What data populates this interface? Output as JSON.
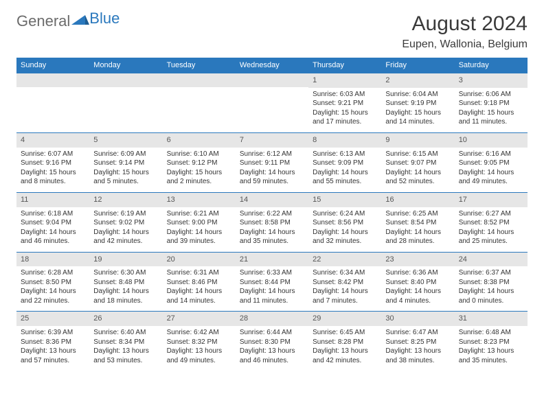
{
  "brand": {
    "part1": "General",
    "part2": "Blue"
  },
  "title": "August 2024",
  "location": "Eupen, Wallonia, Belgium",
  "colors": {
    "header_bg": "#2a78bd",
    "header_text": "#ffffff",
    "daynum_bg": "#e6e6e6",
    "border": "#2a78bd",
    "text": "#333333"
  },
  "day_headers": [
    "Sunday",
    "Monday",
    "Tuesday",
    "Wednesday",
    "Thursday",
    "Friday",
    "Saturday"
  ],
  "weeks": [
    [
      null,
      null,
      null,
      null,
      {
        "n": "1",
        "sr": "Sunrise: 6:03 AM",
        "ss": "Sunset: 9:21 PM",
        "dl": "Daylight: 15 hours and 17 minutes."
      },
      {
        "n": "2",
        "sr": "Sunrise: 6:04 AM",
        "ss": "Sunset: 9:19 PM",
        "dl": "Daylight: 15 hours and 14 minutes."
      },
      {
        "n": "3",
        "sr": "Sunrise: 6:06 AM",
        "ss": "Sunset: 9:18 PM",
        "dl": "Daylight: 15 hours and 11 minutes."
      }
    ],
    [
      {
        "n": "4",
        "sr": "Sunrise: 6:07 AM",
        "ss": "Sunset: 9:16 PM",
        "dl": "Daylight: 15 hours and 8 minutes."
      },
      {
        "n": "5",
        "sr": "Sunrise: 6:09 AM",
        "ss": "Sunset: 9:14 PM",
        "dl": "Daylight: 15 hours and 5 minutes."
      },
      {
        "n": "6",
        "sr": "Sunrise: 6:10 AM",
        "ss": "Sunset: 9:12 PM",
        "dl": "Daylight: 15 hours and 2 minutes."
      },
      {
        "n": "7",
        "sr": "Sunrise: 6:12 AM",
        "ss": "Sunset: 9:11 PM",
        "dl": "Daylight: 14 hours and 59 minutes."
      },
      {
        "n": "8",
        "sr": "Sunrise: 6:13 AM",
        "ss": "Sunset: 9:09 PM",
        "dl": "Daylight: 14 hours and 55 minutes."
      },
      {
        "n": "9",
        "sr": "Sunrise: 6:15 AM",
        "ss": "Sunset: 9:07 PM",
        "dl": "Daylight: 14 hours and 52 minutes."
      },
      {
        "n": "10",
        "sr": "Sunrise: 6:16 AM",
        "ss": "Sunset: 9:05 PM",
        "dl": "Daylight: 14 hours and 49 minutes."
      }
    ],
    [
      {
        "n": "11",
        "sr": "Sunrise: 6:18 AM",
        "ss": "Sunset: 9:04 PM",
        "dl": "Daylight: 14 hours and 46 minutes."
      },
      {
        "n": "12",
        "sr": "Sunrise: 6:19 AM",
        "ss": "Sunset: 9:02 PM",
        "dl": "Daylight: 14 hours and 42 minutes."
      },
      {
        "n": "13",
        "sr": "Sunrise: 6:21 AM",
        "ss": "Sunset: 9:00 PM",
        "dl": "Daylight: 14 hours and 39 minutes."
      },
      {
        "n": "14",
        "sr": "Sunrise: 6:22 AM",
        "ss": "Sunset: 8:58 PM",
        "dl": "Daylight: 14 hours and 35 minutes."
      },
      {
        "n": "15",
        "sr": "Sunrise: 6:24 AM",
        "ss": "Sunset: 8:56 PM",
        "dl": "Daylight: 14 hours and 32 minutes."
      },
      {
        "n": "16",
        "sr": "Sunrise: 6:25 AM",
        "ss": "Sunset: 8:54 PM",
        "dl": "Daylight: 14 hours and 28 minutes."
      },
      {
        "n": "17",
        "sr": "Sunrise: 6:27 AM",
        "ss": "Sunset: 8:52 PM",
        "dl": "Daylight: 14 hours and 25 minutes."
      }
    ],
    [
      {
        "n": "18",
        "sr": "Sunrise: 6:28 AM",
        "ss": "Sunset: 8:50 PM",
        "dl": "Daylight: 14 hours and 22 minutes."
      },
      {
        "n": "19",
        "sr": "Sunrise: 6:30 AM",
        "ss": "Sunset: 8:48 PM",
        "dl": "Daylight: 14 hours and 18 minutes."
      },
      {
        "n": "20",
        "sr": "Sunrise: 6:31 AM",
        "ss": "Sunset: 8:46 PM",
        "dl": "Daylight: 14 hours and 14 minutes."
      },
      {
        "n": "21",
        "sr": "Sunrise: 6:33 AM",
        "ss": "Sunset: 8:44 PM",
        "dl": "Daylight: 14 hours and 11 minutes."
      },
      {
        "n": "22",
        "sr": "Sunrise: 6:34 AM",
        "ss": "Sunset: 8:42 PM",
        "dl": "Daylight: 14 hours and 7 minutes."
      },
      {
        "n": "23",
        "sr": "Sunrise: 6:36 AM",
        "ss": "Sunset: 8:40 PM",
        "dl": "Daylight: 14 hours and 4 minutes."
      },
      {
        "n": "24",
        "sr": "Sunrise: 6:37 AM",
        "ss": "Sunset: 8:38 PM",
        "dl": "Daylight: 14 hours and 0 minutes."
      }
    ],
    [
      {
        "n": "25",
        "sr": "Sunrise: 6:39 AM",
        "ss": "Sunset: 8:36 PM",
        "dl": "Daylight: 13 hours and 57 minutes."
      },
      {
        "n": "26",
        "sr": "Sunrise: 6:40 AM",
        "ss": "Sunset: 8:34 PM",
        "dl": "Daylight: 13 hours and 53 minutes."
      },
      {
        "n": "27",
        "sr": "Sunrise: 6:42 AM",
        "ss": "Sunset: 8:32 PM",
        "dl": "Daylight: 13 hours and 49 minutes."
      },
      {
        "n": "28",
        "sr": "Sunrise: 6:44 AM",
        "ss": "Sunset: 8:30 PM",
        "dl": "Daylight: 13 hours and 46 minutes."
      },
      {
        "n": "29",
        "sr": "Sunrise: 6:45 AM",
        "ss": "Sunset: 8:28 PM",
        "dl": "Daylight: 13 hours and 42 minutes."
      },
      {
        "n": "30",
        "sr": "Sunrise: 6:47 AM",
        "ss": "Sunset: 8:25 PM",
        "dl": "Daylight: 13 hours and 38 minutes."
      },
      {
        "n": "31",
        "sr": "Sunrise: 6:48 AM",
        "ss": "Sunset: 8:23 PM",
        "dl": "Daylight: 13 hours and 35 minutes."
      }
    ]
  ]
}
